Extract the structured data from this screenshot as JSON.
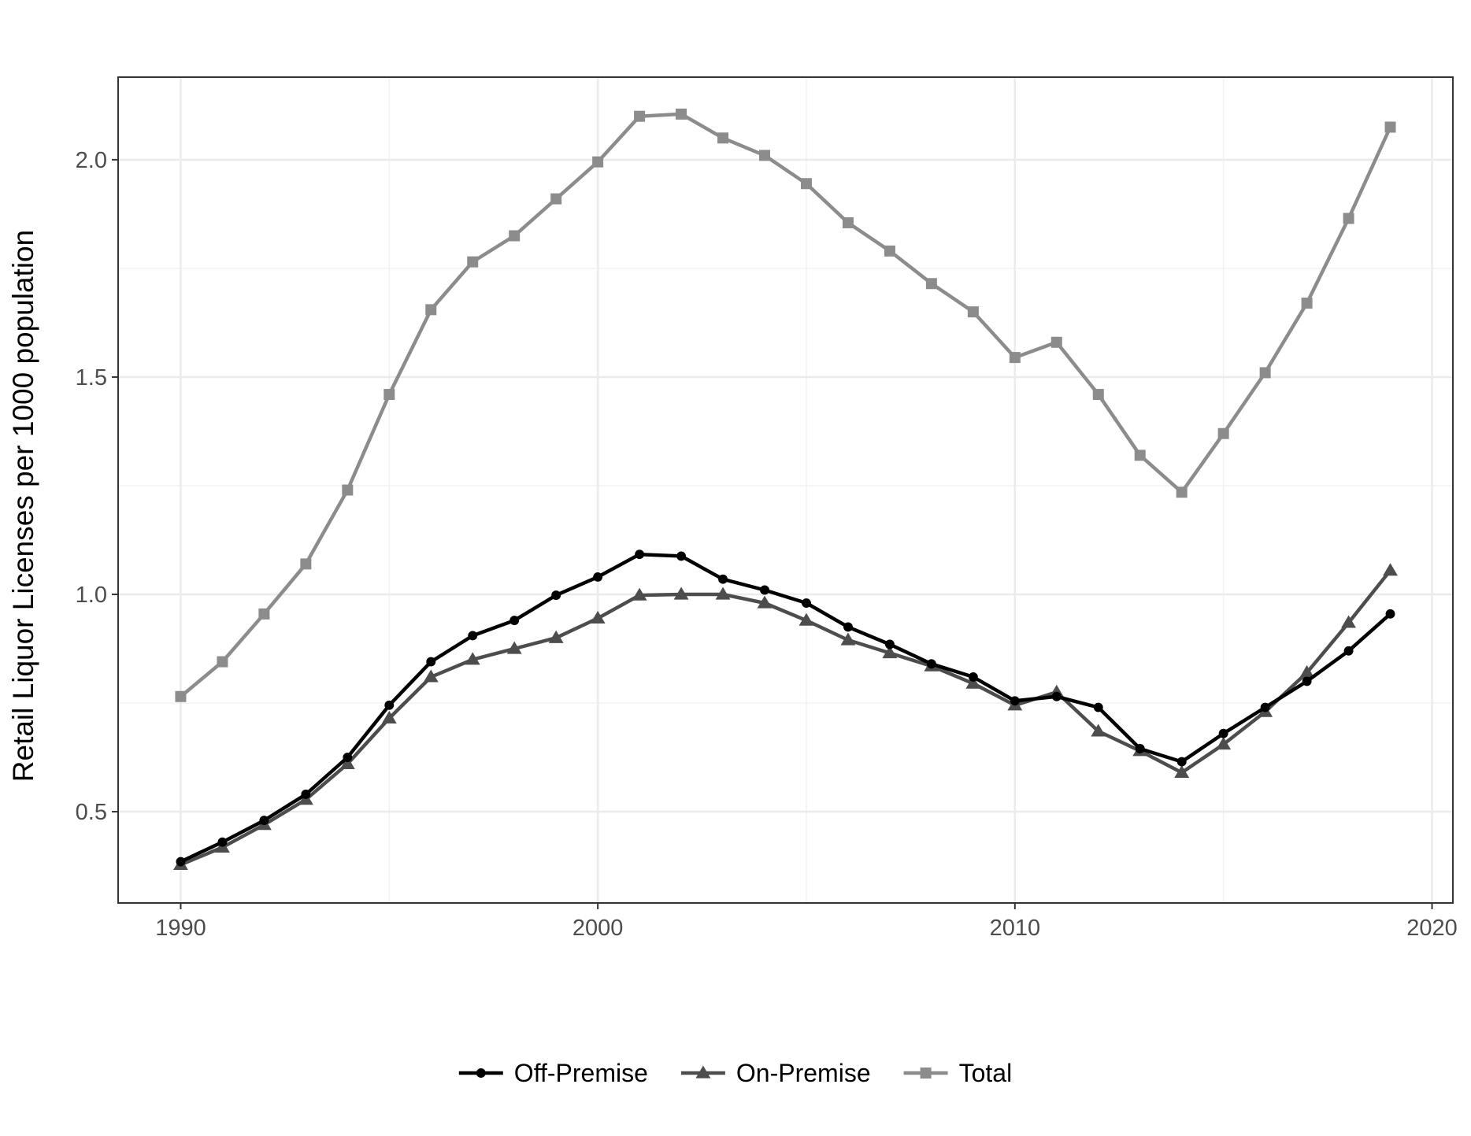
{
  "chart_data": {
    "type": "line",
    "title": "",
    "xlabel": "",
    "ylabel": "Retail Liquor Licenses per 1000 population",
    "xlim": [
      1988.5,
      2020.5
    ],
    "ylim": [
      0.29,
      2.19
    ],
    "x_ticks": [
      1990,
      2000,
      2010,
      2020
    ],
    "y_ticks": [
      0.5,
      1.0,
      1.5,
      2.0
    ],
    "x_tick_labels": [
      "1990",
      "2000",
      "2010",
      "2020"
    ],
    "y_tick_labels": [
      "0.5",
      "1.0",
      "1.5",
      "2.0"
    ],
    "y_minor_ticks": [
      0.75,
      1.25,
      1.75
    ],
    "x_minor_ticks": [
      1995,
      2005,
      2015
    ],
    "grid": true,
    "legend_position": "bottom",
    "x": [
      1990,
      1991,
      1992,
      1993,
      1994,
      1995,
      1996,
      1997,
      1998,
      1999,
      2000,
      2001,
      2002,
      2003,
      2004,
      2005,
      2006,
      2007,
      2008,
      2009,
      2010,
      2011,
      2012,
      2013,
      2014,
      2015,
      2016,
      2017,
      2018,
      2019
    ],
    "series": [
      {
        "name": "Off-Premise",
        "color": "#000000",
        "marker": "circle",
        "values": [
          0.385,
          0.43,
          0.48,
          0.54,
          0.625,
          0.745,
          0.845,
          0.905,
          0.94,
          0.998,
          1.04,
          1.092,
          1.088,
          1.035,
          1.01,
          0.98,
          0.925,
          0.885,
          0.84,
          0.81,
          0.755,
          0.765,
          0.74,
          0.645,
          0.615,
          0.68,
          0.74,
          0.8,
          0.87,
          0.955
        ]
      },
      {
        "name": "On-Premise",
        "color": "#4d4d4d",
        "marker": "triangle",
        "values": [
          0.378,
          0.418,
          0.47,
          0.528,
          0.61,
          0.715,
          0.81,
          0.85,
          0.875,
          0.9,
          0.945,
          0.998,
          1.0,
          1.0,
          0.98,
          0.94,
          0.895,
          0.865,
          0.835,
          0.795,
          0.745,
          0.775,
          0.685,
          0.64,
          0.59,
          0.655,
          0.73,
          0.82,
          0.935,
          1.055
        ]
      },
      {
        "name": "Total",
        "color": "#8c8c8c",
        "marker": "square",
        "values": [
          0.765,
          0.845,
          0.955,
          1.07,
          1.24,
          1.46,
          1.655,
          1.765,
          1.825,
          1.91,
          1.995,
          2.1,
          2.105,
          2.05,
          2.01,
          1.945,
          1.855,
          1.79,
          1.715,
          1.65,
          1.545,
          1.58,
          1.46,
          1.32,
          1.235,
          1.37,
          1.51,
          1.67,
          1.865,
          2.075
        ]
      }
    ]
  }
}
